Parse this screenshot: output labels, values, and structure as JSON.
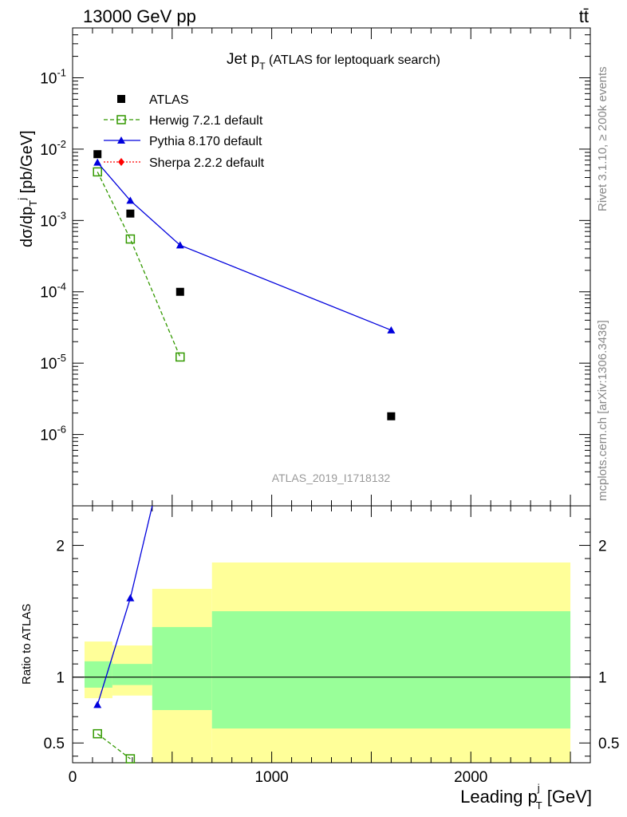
{
  "header": {
    "left": "13000 GeV pp",
    "right": "tt̄"
  },
  "title": {
    "main": "Jet p",
    "sub": "T",
    "rest": " (ATLAS for leptoquark search)"
  },
  "analysis_id": "ATLAS_2019_I1718132",
  "side_text": {
    "rivet": "Rivet 3.1.10, ≥ 200k events",
    "source": "mcplots.cern.ch [arXiv:1306.3436]"
  },
  "ylabel_top": "dσ/dp",
  "ylabel_top_sub": "T",
  "ylabel_top_sup": "j",
  "ylabel_top_unit": " [pb/GeV]",
  "ylabel_bottom": "Ratio to ATLAS",
  "xlabel": "Leading p",
  "xlabel_sup": "j",
  "xlabel_sub": "T",
  "xlabel_unit": " [GeV]",
  "legend": [
    {
      "label": "ATLAS",
      "color": "#000000",
      "marker": "square"
    },
    {
      "label": "Herwig 7.2.1 default",
      "color": "#339900",
      "marker": "open-square"
    },
    {
      "label": "Pythia 8.170 default",
      "color": "#0000dd",
      "marker": "triangle"
    },
    {
      "label": "Sherpa 2.2.2 default",
      "color": "#ff0000",
      "marker": "diamond"
    }
  ],
  "chart_data": [
    {
      "type": "scatter",
      "panel": "main",
      "yscale": "log",
      "xlim": [
        0,
        2600
      ],
      "ylim": [
        1e-07,
        0.5
      ],
      "series": [
        {
          "name": "ATLAS",
          "x": [
            125,
            290,
            540,
            1600
          ],
          "y": [
            0.0085,
            0.00125,
            0.0001,
            1.8e-06
          ]
        },
        {
          "name": "Herwig 7.2.1 default",
          "x": [
            125,
            290,
            540
          ],
          "y": [
            0.0048,
            0.00055,
            1.22e-05
          ]
        },
        {
          "name": "Pythia 8.170 default",
          "x": [
            125,
            290,
            540,
            1600
          ],
          "y": [
            0.0065,
            0.0019,
            0.00045,
            2.9e-05
          ]
        }
      ]
    },
    {
      "type": "line",
      "panel": "ratio",
      "xlim": [
        0,
        2600
      ],
      "ylim": [
        0.35,
        2.3
      ],
      "yticks": [
        0.5,
        1,
        2
      ],
      "xticks": [
        0,
        1000,
        2000
      ],
      "uncertainty_bins": [
        {
          "x0": 60,
          "x1": 200,
          "inner": [
            0.92,
            1.12
          ],
          "outer": [
            0.84,
            1.27
          ]
        },
        {
          "x0": 200,
          "x1": 400,
          "inner": [
            0.94,
            1.1
          ],
          "outer": [
            0.86,
            1.24
          ]
        },
        {
          "x0": 400,
          "x1": 700,
          "inner": [
            0.75,
            1.38
          ],
          "outer": [
            0.35,
            1.67
          ]
        },
        {
          "x0": 700,
          "x1": 2500,
          "inner": [
            0.61,
            1.5
          ],
          "outer": [
            0.35,
            1.87
          ]
        }
      ],
      "series": [
        {
          "name": "Herwig 7.2.1 default",
          "x": [
            125,
            290
          ],
          "y": [
            0.57,
            0.38
          ]
        },
        {
          "name": "Pythia 8.170 default",
          "x": [
            125,
            290,
            400
          ],
          "y": [
            0.79,
            1.6,
            2.3
          ]
        }
      ]
    }
  ]
}
